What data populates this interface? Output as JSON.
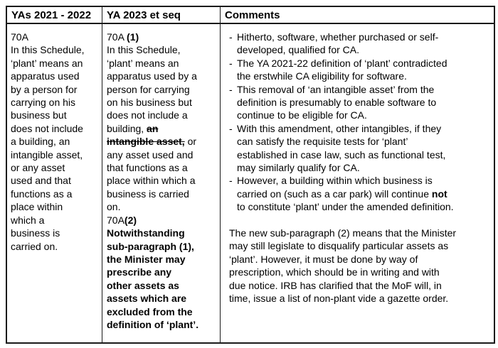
{
  "colors": {
    "background": "#ffffff",
    "border": "#1a1a1a",
    "text": "#000000"
  },
  "header": {
    "col1": "YAs 2021 - 2022",
    "col2": "YA 2023 et seq",
    "col3": "Comments"
  },
  "old_law": {
    "runs": [
      {
        "t": "70A\nIn this Schedule,\n‘plant’ means an\napparatus used\nby a person for\ncarrying on his\nbusiness but\ndoes not include\na building, an\nintangible asset,\nor any asset\nused and that\nfunctions as a\nplace within\nwhich a\nbusiness is\ncarried on."
      }
    ]
  },
  "new_law": {
    "runs": [
      {
        "t": "70A "
      },
      {
        "t": "(1)",
        "b": true
      },
      {
        "t": "\nIn this Schedule,\n‘plant’ means an\napparatus used by a\nperson for carrying\non his business but\ndoes not include a\nbuilding, "
      },
      {
        "t": "an\nintangible asset,",
        "b": true,
        "s": true
      },
      {
        "t": " or\nany asset used and\nthat functions as a\nplace within which a\nbusiness is carried\non.\n70A"
      },
      {
        "t": "(2)",
        "b": true
      },
      {
        "t": "\n"
      },
      {
        "t": "Notwithstanding\nsub-paragraph (1),\nthe Minister may\nprescribe any\nother assets as\nassets which are\nexcluded from the\ndefinition of ‘plant’.",
        "b": true
      }
    ]
  },
  "comments": {
    "bullet_marker": "-",
    "bullets": [
      {
        "runs": [
          {
            "t": "Hitherto, software, whether purchased or self-\ndeveloped, qualified for CA."
          }
        ]
      },
      {
        "runs": [
          {
            "t": "The YA 2021-22 definition of ‘plant’ contradicted\nthe erstwhile CA eligibility for software."
          }
        ]
      },
      {
        "runs": [
          {
            "t": "This removal of ‘an intangible asset’ from the\ndefinition is presumably to enable software to\ncontinue to be eligible for CA."
          }
        ]
      },
      {
        "runs": [
          {
            "t": "With this amendment, other intangibles, if they\ncan satisfy the requisite tests for ‘plant’\nestablished in case law, such as functional test,\nmay similarly qualify for CA."
          }
        ]
      },
      {
        "runs": [
          {
            "t": "However, a building within which business is\ncarried on (such as a car park) will continue "
          },
          {
            "t": "not",
            "b": true
          },
          {
            "t": "\nto constitute ‘plant’ under the amended definition."
          }
        ]
      }
    ],
    "paragraph": {
      "runs": [
        {
          "t": "The new sub-paragraph (2) means that the Minister\nmay still legislate to disqualify particular assets as\n‘plant’. However, it must be done by way of\nprescription, which should be in writing and with\ndue notice. IRB has clarified that the MoF will, in\ntime, issue a list of non-plant vide a gazette order."
        }
      ]
    }
  }
}
